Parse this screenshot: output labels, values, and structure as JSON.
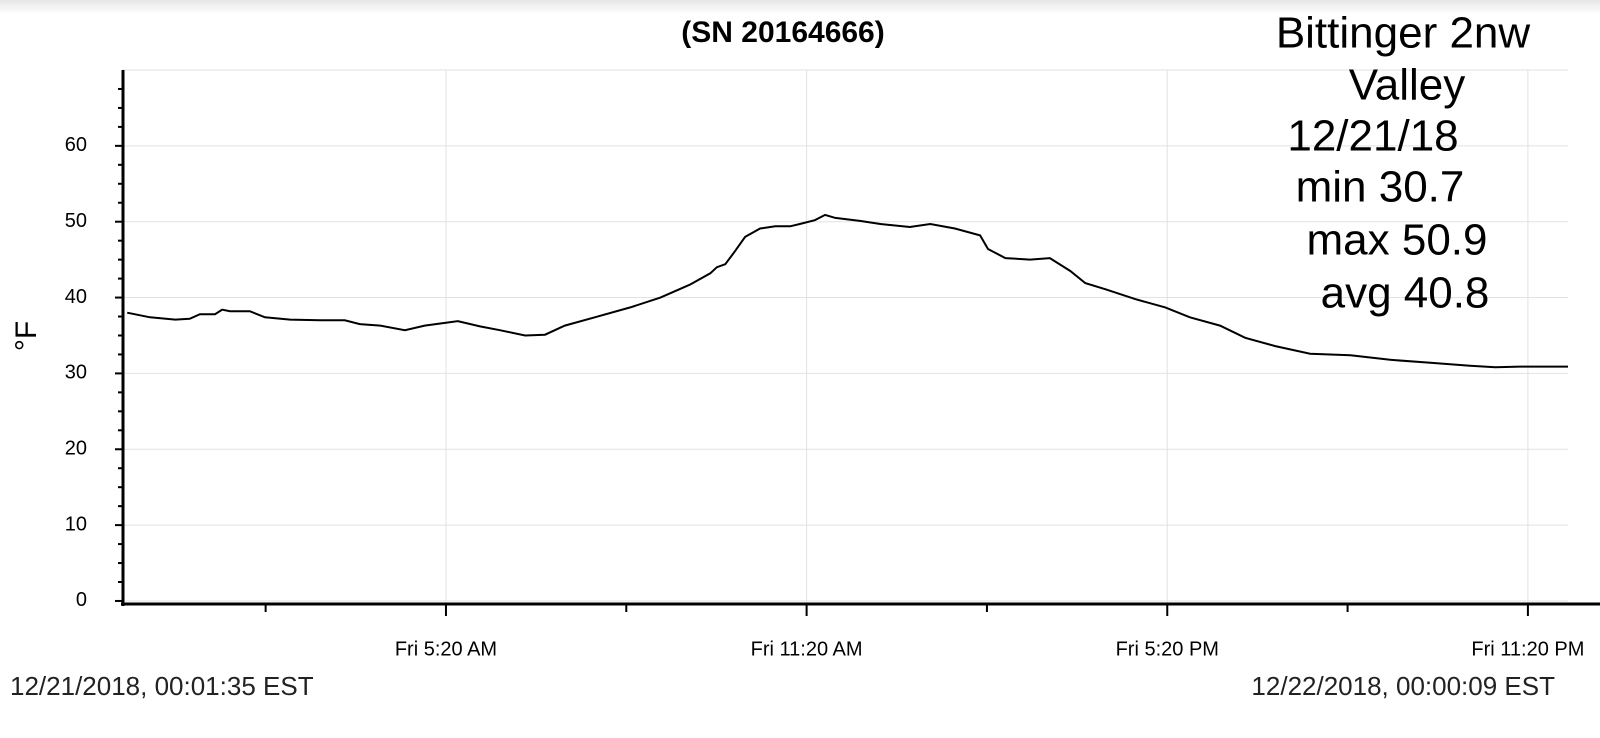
{
  "chart_data": {
    "type": "line",
    "title": "(SN 20164666)",
    "y_label": "°F",
    "annotations": [
      "Bittinger 2nw",
      "Valley",
      "12/21/18",
      "min 30.7",
      "max 50.9",
      "avg 40.8"
    ],
    "start_label": "12/21/2018, 00:01:35 EST",
    "end_label": "12/22/2018, 00:00:09 EST",
    "xlim": [
      -0.04,
      24.0
    ],
    "ylim": [
      -0.4,
      70
    ],
    "xticks": [
      {
        "value": 5.333,
        "label": "Fri 5:20 AM"
      },
      {
        "value": 11.333,
        "label": "Fri 11:20 AM"
      },
      {
        "value": 17.333,
        "label": "Fri 5:20 PM"
      },
      {
        "value": 23.333,
        "label": "Fri 11:20 PM"
      }
    ],
    "xminorticks": [
      2.333,
      8.333,
      14.333,
      20.333
    ],
    "yticks": [
      0,
      10,
      20,
      30,
      40,
      50,
      60
    ],
    "yminorticks": [
      2.5,
      5,
      7.5,
      12.5,
      15,
      17.5,
      22.5,
      25,
      27.5,
      32.5,
      35,
      37.5,
      42.5,
      45,
      47.5,
      52.5,
      55,
      57.5,
      62.5,
      65,
      67.5
    ],
    "grid": true,
    "series": [
      {
        "color": "#000000",
        "x": [
          0.03,
          0.41,
          0.83,
          1.07,
          1.24,
          1.49,
          1.61,
          1.74,
          2.07,
          2.32,
          2.74,
          3.24,
          3.65,
          3.9,
          4.24,
          4.65,
          4.98,
          5.53,
          5.9,
          6.23,
          6.65,
          6.98,
          7.31,
          7.81,
          8.4,
          8.9,
          9.39,
          9.73,
          9.84,
          9.98,
          10.14,
          10.31,
          10.56,
          10.81,
          11.06,
          11.22,
          11.47,
          11.64,
          11.81,
          12.22,
          12.56,
          13.05,
          13.39,
          13.8,
          14.22,
          14.35,
          14.64,
          15.05,
          15.38,
          15.72,
          15.97,
          16.3,
          16.8,
          17.3,
          17.71,
          18.21,
          18.63,
          19.13,
          19.71,
          20.38,
          21.04,
          21.71,
          22.37,
          22.79,
          23.2,
          24.0
        ],
        "values": [
          38.0,
          37.4,
          37.1,
          37.2,
          37.8,
          37.8,
          38.4,
          38.2,
          38.2,
          37.4,
          37.1,
          37.0,
          37.0,
          36.5,
          36.3,
          35.7,
          36.3,
          36.9,
          36.2,
          35.7,
          35.0,
          35.1,
          36.3,
          37.4,
          38.7,
          40.0,
          41.7,
          43.2,
          44.0,
          44.4,
          46.1,
          48.0,
          49.1,
          49.4,
          49.4,
          49.7,
          50.2,
          50.9,
          50.5,
          50.1,
          49.7,
          49.3,
          49.7,
          49.1,
          48.2,
          46.4,
          45.2,
          45.0,
          45.2,
          43.5,
          41.9,
          41.1,
          39.8,
          38.7,
          37.4,
          36.3,
          34.7,
          33.6,
          32.6,
          32.4,
          31.8,
          31.4,
          31.0,
          30.8,
          30.9,
          30.9
        ]
      }
    ]
  }
}
